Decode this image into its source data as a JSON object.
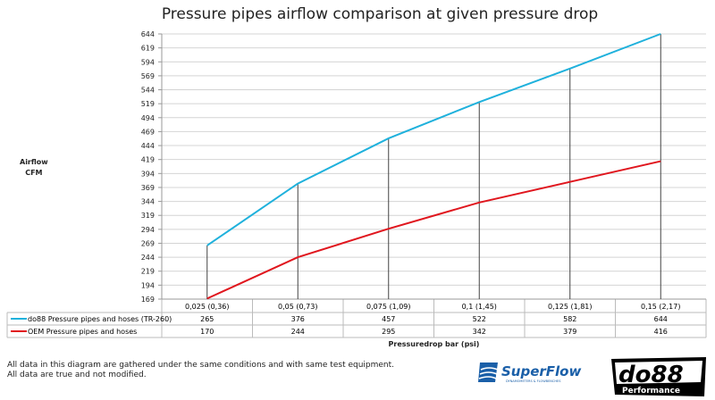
{
  "chart_data": {
    "type": "line",
    "title": "Pressure pipes airflow comparison at given pressure drop",
    "xlabel": "Pressuredrop bar (psi)",
    "ylabel": [
      "Airflow",
      "CFM"
    ],
    "categories": [
      "0,025 (0,36)",
      "0,05 (0,73)",
      "0,075 (1,09)",
      "0,1 (1,45)",
      "0,125 (1,81)",
      "0,15 (2,17)"
    ],
    "y_ticks": [
      169,
      194,
      219,
      244,
      269,
      294,
      319,
      344,
      369,
      394,
      419,
      444,
      469,
      494,
      519,
      544,
      569,
      594,
      619,
      644
    ],
    "ylim": [
      169,
      644
    ],
    "grid": true,
    "drop_lines": true,
    "legend": "data-table-below",
    "series": [
      {
        "name": "do88 Pressure pipes and hoses (TR-260)",
        "color": "#1fb1dc",
        "values": [
          265,
          376,
          457,
          522,
          582,
          644
        ]
      },
      {
        "name": "OEM Pressure pipes and hoses",
        "color": "#e0161e",
        "values": [
          170,
          244,
          295,
          342,
          379,
          416
        ]
      }
    ]
  },
  "note": [
    "All data in this diagram are gathered under the same conditions and with same test equipment.",
    "All data are true and not modified."
  ],
  "logos": {
    "superflow": "SuperFlow",
    "superflow_sub": "DYNAMOMETERS & FLOWBENCHES",
    "do88": "do88",
    "do88_sub": "Performance"
  }
}
